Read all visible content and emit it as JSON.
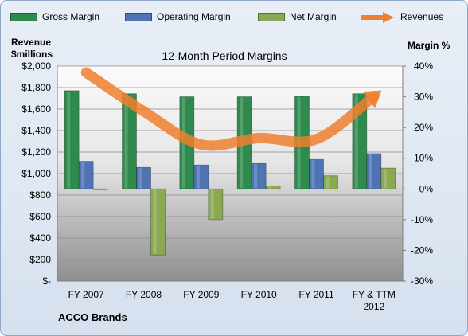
{
  "chart_data": {
    "type": "bar",
    "title": "12-Month Period Margins",
    "y_left_label_line1": "Revenue",
    "y_left_label_line2": "$millions",
    "y_right_label": "Margin %",
    "company": "ACCO Brands",
    "categories": [
      "FY 2007",
      "FY 2008",
      "FY 2009",
      "FY 2010",
      "FY 2011",
      "FY & TTM 2012"
    ],
    "left_axis": {
      "min": 0,
      "max": 2000,
      "step": 200,
      "ticks": [
        "$-",
        "$200",
        "$400",
        "$600",
        "$800",
        "$1,000",
        "$1,200",
        "$1,400",
        "$1,600",
        "$1,800",
        "$2,000"
      ]
    },
    "right_axis": {
      "min": -30,
      "max": 40,
      "step": 10,
      "ticks": [
        "-30%",
        "-20%",
        "-10%",
        "0%",
        "10%",
        "20%",
        "30%",
        "40%"
      ]
    },
    "series": [
      {
        "name": "Gross Margin",
        "kind": "bar",
        "axis": "right",
        "color": "#2e8b4d",
        "values": [
          32,
          31,
          30,
          30,
          30.2,
          31
        ]
      },
      {
        "name": "Operating Margin",
        "kind": "bar",
        "axis": "right",
        "color": "#4f74b4",
        "values": [
          9,
          7,
          7.8,
          8.3,
          9.6,
          11.5
        ]
      },
      {
        "name": "Net Margin",
        "kind": "bar",
        "axis": "right",
        "color": "#8aaa52",
        "values": [
          0,
          -21.5,
          -10,
          1,
          4.3,
          6.8
        ]
      },
      {
        "name": "Revenues",
        "kind": "line",
        "axis": "left",
        "color": "#ee7f2f",
        "values": [
          1940,
          1580,
          1270,
          1330,
          1320,
          1720
        ]
      }
    ],
    "legend_position": "top",
    "grid": true
  }
}
